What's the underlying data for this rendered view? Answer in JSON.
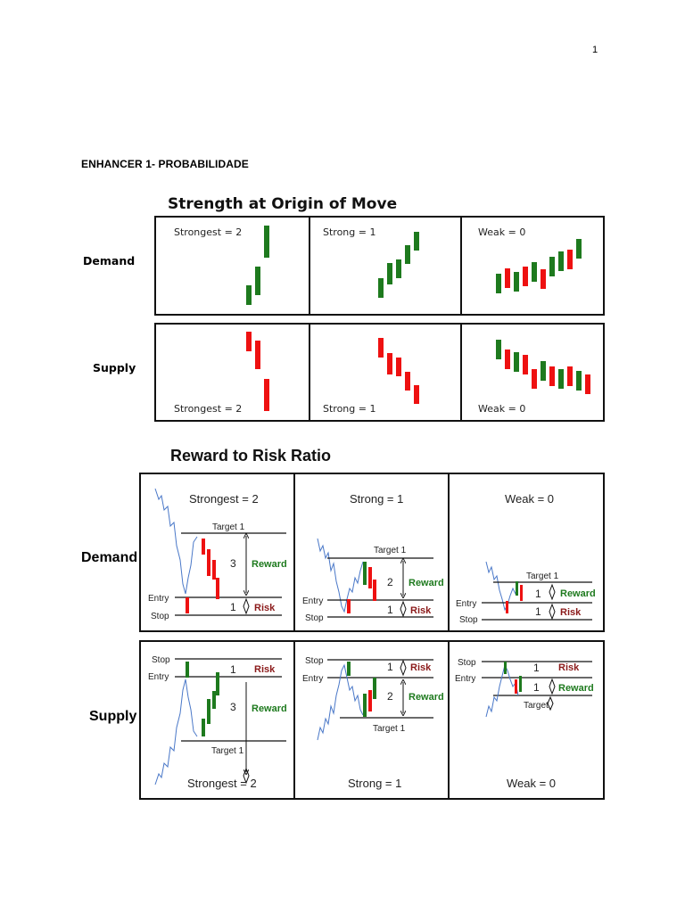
{
  "page_number": "1",
  "heading": "ENHANCER 1- PROBABILIDADE",
  "figure1": {
    "title": "Strength at Origin of Move",
    "rows": [
      {
        "label": "Demand",
        "cells": [
          "Strongest = 2",
          "Strong = 1",
          "Weak = 0"
        ]
      },
      {
        "label": "Supply",
        "cells": [
          "Strongest = 2",
          "Strong = 1",
          "Weak = 0"
        ]
      }
    ]
  },
  "figure2": {
    "title": "Reward to Risk Ratio",
    "row_labels": [
      "Demand",
      "Supply"
    ],
    "columns": [
      "Strongest = 2",
      "Strong = 1",
      "Weak = 0"
    ],
    "line_labels": {
      "target": "Target 1",
      "target_short": "Target",
      "entry": "Entry",
      "stop": "Stop"
    },
    "tag_labels": {
      "reward": "Reward",
      "risk": "Risk"
    },
    "demand_ratios": [
      {
        "reward": "3",
        "risk": "1"
      },
      {
        "reward": "2",
        "risk": "1"
      },
      {
        "reward": "1",
        "risk": "1"
      }
    ],
    "supply_ratios": [
      {
        "risk": "1",
        "reward": "3"
      },
      {
        "risk": "1",
        "reward": "2"
      },
      {
        "risk": "1",
        "reward": "1"
      }
    ]
  },
  "colors": {
    "bullish": "#1e7a1e",
    "bearish": "#ee1111",
    "reward_text": "#1e7a1e",
    "risk_text": "#8b1a1a"
  }
}
